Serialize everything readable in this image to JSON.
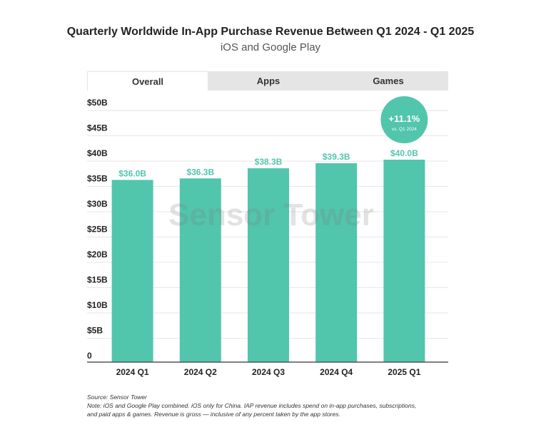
{
  "chart_data": {
    "type": "bar",
    "title": "Quarterly Worldwide In-App Purchase Revenue Between Q1 2024 - Q1 2025",
    "subtitle": "iOS and Google Play",
    "categories": [
      "2024 Q1",
      "2024 Q2",
      "2024 Q3",
      "2024 Q4",
      "2025 Q1"
    ],
    "values": [
      36.0,
      36.3,
      38.3,
      39.3,
      40.0
    ],
    "data_labels": [
      "$36.0B",
      "$36.3B",
      "$38.3B",
      "$39.3B",
      "$40.0B"
    ],
    "yticks": [
      0,
      5,
      10,
      15,
      20,
      25,
      30,
      35,
      40,
      45,
      50
    ],
    "ytick_labels": [
      "0",
      "$5B",
      "$10B",
      "$15B",
      "$20B",
      "$25B",
      "$30B",
      "$35B",
      "$40B",
      "$45B",
      "$50B"
    ],
    "ylim": [
      0,
      50
    ],
    "grid": true,
    "bar_color": "#52c5ad",
    "annotation": {
      "value": "+11.1%",
      "sub": "vs. Q1 2024"
    }
  },
  "tabs": [
    {
      "label": "Overall",
      "active": true
    },
    {
      "label": "Apps"
    },
    {
      "label": "Games"
    }
  ],
  "watermark": "Sensor Tower",
  "footer": {
    "source": "Source: Sensor Tower",
    "note1": "Note: iOS and Google Play combined. iOS only for China. IAP revenue includes spend on in-app purchases, subscriptions,",
    "note2": "and paid apps & games. Revenue is gross — inclusive of any percent taken by the app stores."
  }
}
